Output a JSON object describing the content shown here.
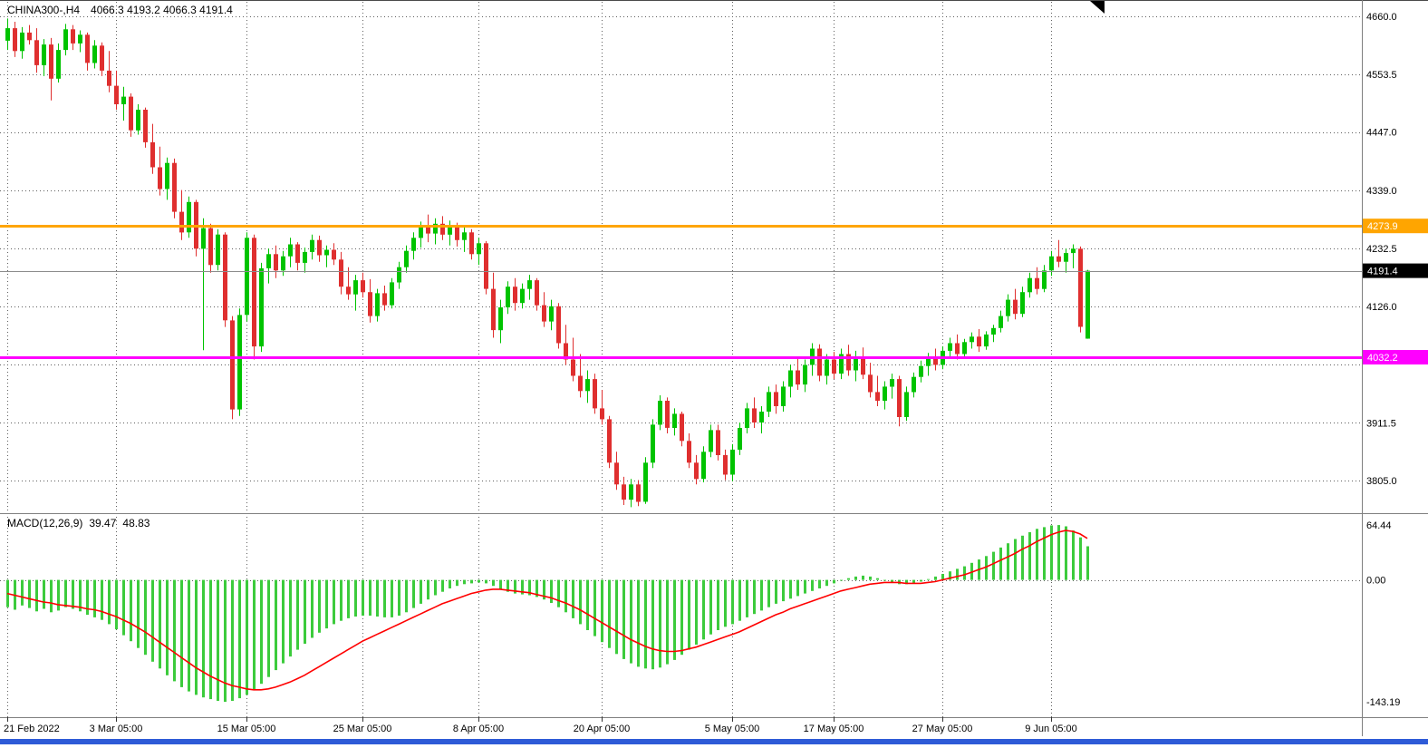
{
  "header": {
    "symbol_period": "CHINA300-,H4",
    "ohlc": "4066.3 4193.2 4066.3 4191.4"
  },
  "macd_label": {
    "name": "MACD(12,26,9)",
    "main": "39.47",
    "signal": "48.83"
  },
  "colors": {
    "bull": "#00C300",
    "bear": "#DF2F2F",
    "histogram": "#3CCB3C",
    "signal_line": "#FF0000",
    "grid": "#5F5F5F",
    "divider": "#808080",
    "resistance": "#FFA500",
    "support": "#FF00FF",
    "current_price_line": "#8C8C8C",
    "current_price_badge": "#000000",
    "bottom_bar": "#2E5BD7",
    "text": "#000000",
    "badge_text": "#FFFFFF"
  },
  "chart_data": [
    {
      "type": "candlestick",
      "title": "CHINA300-,H4",
      "timeframe": "H4",
      "y_axis": {
        "min": 3745,
        "max": 4690,
        "ticks": [
          {
            "value": 4660.0,
            "label": "4660.0"
          },
          {
            "value": 4553.5,
            "label": "4553.5"
          },
          {
            "value": 4447.0,
            "label": "4447.0"
          },
          {
            "value": 4339.0,
            "label": "4339.0"
          },
          {
            "value": 4232.5,
            "label": "4232.5"
          },
          {
            "value": 4126.0,
            "label": "4126.0"
          },
          {
            "value": 4019.5,
            "label": ""
          },
          {
            "value": 3911.5,
            "label": "3911.5"
          },
          {
            "value": 3805.0,
            "label": "3805.0"
          }
        ]
      },
      "x_ticks": [
        {
          "index": 0,
          "label": "21 Feb 2022"
        },
        {
          "index": 15,
          "label": "3 Mar 05:00"
        },
        {
          "index": 33,
          "label": "15 Mar 05:00"
        },
        {
          "index": 49,
          "label": "25 Mar 05:00"
        },
        {
          "index": 65,
          "label": "8 Apr 05:00"
        },
        {
          "index": 82,
          "label": "20 Apr 05:00"
        },
        {
          "index": 100,
          "label": "5 May 05:00"
        },
        {
          "index": 114,
          "label": "17 May 05:00"
        },
        {
          "index": 129,
          "label": "27 May 05:00"
        },
        {
          "index": 144,
          "label": "9 Jun 05:00"
        }
      ],
      "hlines": [
        {
          "value": 4273.9,
          "label": "4273.9",
          "color": "#FFA500",
          "width": 3,
          "role": "resistance-hline"
        },
        {
          "value": 4032.2,
          "label": "4032.2",
          "color": "#FF00FF",
          "width": 3,
          "role": "support-hline"
        },
        {
          "value": 4191.4,
          "label": "4191.4",
          "color": "#8C8C8C",
          "badge": "#000000",
          "width": 1,
          "role": "current-price-line"
        }
      ],
      "candles_ohlc": [
        [
          4615,
          4656,
          4598,
          4638
        ],
        [
          4638,
          4650,
          4585,
          4596
        ],
        [
          4596,
          4640,
          4582,
          4630
        ],
        [
          4630,
          4644,
          4608,
          4616
        ],
        [
          4616,
          4638,
          4556,
          4570
        ],
        [
          4570,
          4618,
          4550,
          4608
        ],
        [
          4608,
          4620,
          4505,
          4545
        ],
        [
          4545,
          4610,
          4538,
          4598
        ],
        [
          4598,
          4646,
          4588,
          4636
        ],
        [
          4636,
          4644,
          4598,
          4610
        ],
        [
          4610,
          4634,
          4594,
          4626
        ],
        [
          4626,
          4630,
          4560,
          4574
        ],
        [
          4574,
          4616,
          4564,
          4606
        ],
        [
          4606,
          4612,
          4550,
          4560
        ],
        [
          4560,
          4596,
          4520,
          4532
        ],
        [
          4532,
          4560,
          4488,
          4498
        ],
        [
          4498,
          4530,
          4468,
          4512
        ],
        [
          4512,
          4518,
          4438,
          4450
        ],
        [
          4450,
          4498,
          4442,
          4488
        ],
        [
          4488,
          4492,
          4418,
          4428
        ],
        [
          4428,
          4462,
          4370,
          4382
        ],
        [
          4382,
          4420,
          4330,
          4342
        ],
        [
          4342,
          4400,
          4322,
          4390
        ],
        [
          4390,
          4398,
          4288,
          4300
        ],
        [
          4300,
          4340,
          4248,
          4262
        ],
        [
          4262,
          4328,
          4252,
          4318
        ],
        [
          4318,
          4322,
          4218,
          4232
        ],
        [
          4232,
          4288,
          4045,
          4270
        ],
        [
          4270,
          4278,
          4188,
          4202
        ],
        [
          4202,
          4268,
          4192,
          4258
        ],
        [
          4258,
          4262,
          4088,
          4100
        ],
        [
          4100,
          4108,
          3918,
          3936
        ],
        [
          3936,
          4122,
          3924,
          4110
        ],
        [
          4110,
          4262,
          4098,
          4252
        ],
        [
          4252,
          4258,
          4028,
          4052
        ],
        [
          4052,
          4206,
          4042,
          4196
        ],
        [
          4196,
          4232,
          4168,
          4222
        ],
        [
          4222,
          4238,
          4178,
          4192
        ],
        [
          4192,
          4228,
          4182,
          4218
        ],
        [
          4218,
          4252,
          4198,
          4240
        ],
        [
          4240,
          4244,
          4192,
          4206
        ],
        [
          4206,
          4234,
          4188,
          4226
        ],
        [
          4226,
          4258,
          4212,
          4248
        ],
        [
          4248,
          4256,
          4208,
          4220
        ],
        [
          4220,
          4238,
          4198,
          4230
        ],
        [
          4230,
          4242,
          4202,
          4212
        ],
        [
          4212,
          4226,
          4148,
          4162
        ],
        [
          4162,
          4198,
          4138,
          4148
        ],
        [
          4148,
          4184,
          4118,
          4174
        ],
        [
          4174,
          4188,
          4142,
          4152
        ],
        [
          4152,
          4176,
          4096,
          4108
        ],
        [
          4108,
          4158,
          4098,
          4150
        ],
        [
          4150,
          4164,
          4118,
          4128
        ],
        [
          4128,
          4178,
          4122,
          4170
        ],
        [
          4170,
          4208,
          4158,
          4198
        ],
        [
          4198,
          4238,
          4188,
          4228
        ],
        [
          4228,
          4262,
          4212,
          4252
        ],
        [
          4252,
          4282,
          4234,
          4272
        ],
        [
          4272,
          4295,
          4244,
          4260
        ],
        [
          4260,
          4288,
          4240,
          4278
        ],
        [
          4278,
          4292,
          4248,
          4258
        ],
        [
          4258,
          4284,
          4238,
          4272
        ],
        [
          4272,
          4280,
          4236,
          4248
        ],
        [
          4248,
          4272,
          4226,
          4262
        ],
        [
          4262,
          4268,
          4212,
          4222
        ],
        [
          4222,
          4252,
          4202,
          4242
        ],
        [
          4242,
          4246,
          4148,
          4158
        ],
        [
          4158,
          4188,
          4068,
          4082
        ],
        [
          4082,
          4138,
          4058,
          4124
        ],
        [
          4124,
          4172,
          4112,
          4162
        ],
        [
          4162,
          4178,
          4118,
          4132
        ],
        [
          4132,
          4168,
          4122,
          4158
        ],
        [
          4158,
          4184,
          4138,
          4174
        ],
        [
          4174,
          4178,
          4118,
          4128
        ],
        [
          4128,
          4152,
          4088,
          4098
        ],
        [
          4098,
          4138,
          4082,
          4126
        ],
        [
          4126,
          4132,
          4048,
          4058
        ],
        [
          4058,
          4092,
          4018,
          4028
        ],
        [
          4028,
          4068,
          3988,
          3998
        ],
        [
          3998,
          4038,
          3958,
          3970
        ],
        [
          3970,
          4008,
          3948,
          3992
        ],
        [
          3992,
          4002,
          3928,
          3938
        ],
        [
          3938,
          3972,
          3908,
          3918
        ],
        [
          3918,
          3924,
          3828,
          3838
        ],
        [
          3838,
          3858,
          3788,
          3798
        ],
        [
          3798,
          3812,
          3760,
          3770
        ],
        [
          3770,
          3808,
          3756,
          3798
        ],
        [
          3798,
          3806,
          3758,
          3766
        ],
        [
          3766,
          3848,
          3762,
          3838
        ],
        [
          3838,
          3918,
          3828,
          3908
        ],
        [
          3908,
          3962,
          3898,
          3952
        ],
        [
          3952,
          3958,
          3892,
          3902
        ],
        [
          3902,
          3938,
          3888,
          3928
        ],
        [
          3928,
          3932,
          3868,
          3878
        ],
        [
          3878,
          3892,
          3828,
          3838
        ],
        [
          3838,
          3852,
          3798,
          3808
        ],
        [
          3808,
          3868,
          3802,
          3858
        ],
        [
          3858,
          3908,
          3848,
          3898
        ],
        [
          3898,
          3908,
          3842,
          3852
        ],
        [
          3852,
          3862,
          3806,
          3816
        ],
        [
          3816,
          3872,
          3804,
          3862
        ],
        [
          3862,
          3912,
          3852,
          3902
        ],
        [
          3902,
          3948,
          3892,
          3938
        ],
        [
          3938,
          3958,
          3902,
          3912
        ],
        [
          3912,
          3942,
          3892,
          3932
        ],
        [
          3932,
          3978,
          3922,
          3968
        ],
        [
          3968,
          3982,
          3928,
          3942
        ],
        [
          3942,
          3988,
          3932,
          3978
        ],
        [
          3978,
          4018,
          3958,
          4008
        ],
        [
          4008,
          4032,
          3972,
          3982
        ],
        [
          3982,
          4028,
          3968,
          4018
        ],
        [
          4018,
          4058,
          3998,
          4048
        ],
        [
          4048,
          4056,
          3988,
          3998
        ],
        [
          3998,
          4038,
          3982,
          4028
        ],
        [
          4028,
          4042,
          3992,
          4002
        ],
        [
          4002,
          4048,
          3992,
          4038
        ],
        [
          4038,
          4055,
          3998,
          4008
        ],
        [
          4008,
          4044,
          3988,
          4032
        ],
        [
          4032,
          4050,
          3992,
          4000
        ],
        [
          4000,
          4022,
          3958,
          3968
        ],
        [
          3968,
          3998,
          3942,
          3952
        ],
        [
          3952,
          3988,
          3936,
          3978
        ],
        [
          3978,
          4002,
          3956,
          3992
        ],
        [
          3992,
          3998,
          3905,
          3922
        ],
        [
          3922,
          3978,
          3915,
          3968
        ],
        [
          3968,
          4004,
          3958,
          3996
        ],
        [
          3996,
          4026,
          3986,
          4016
        ],
        [
          4016,
          4040,
          3998,
          4032
        ],
        [
          4032,
          4048,
          4008,
          4018
        ],
        [
          4018,
          4052,
          4010,
          4044
        ],
        [
          4044,
          4068,
          4032,
          4058
        ],
        [
          4058,
          4074,
          4028,
          4038
        ],
        [
          4038,
          4066,
          4030,
          4060
        ],
        [
          4060,
          4078,
          4048,
          4070
        ],
        [
          4070,
          4084,
          4042,
          4052
        ],
        [
          4052,
          4080,
          4046,
          4074
        ],
        [
          4074,
          4092,
          4060,
          4086
        ],
        [
          4086,
          4118,
          4078,
          4108
        ],
        [
          4108,
          4148,
          4098,
          4138
        ],
        [
          4138,
          4158,
          4102,
          4112
        ],
        [
          4112,
          4162,
          4106,
          4152
        ],
        [
          4152,
          4188,
          4142,
          4178
        ],
        [
          4178,
          4198,
          4148,
          4158
        ],
        [
          4158,
          4202,
          4152,
          4192
        ],
        [
          4192,
          4228,
          4182,
          4218
        ],
        [
          4218,
          4248,
          4198,
          4208
        ],
        [
          4208,
          4232,
          4188,
          4224
        ],
        [
          4224,
          4240,
          4196,
          4232
        ],
        [
          4232,
          4236,
          4078,
          4088
        ],
        [
          4066.3,
          4193.2,
          4066.3,
          4191.4
        ]
      ]
    },
    {
      "type": "bar",
      "title": "MACD(12,26,9)",
      "current_main": 39.47,
      "current_signal": 48.83,
      "y_ticks": [
        {
          "value": 64.44,
          "label": "64.44"
        },
        {
          "value": 0,
          "label": "0.00"
        },
        {
          "value": -143.19,
          "label": "-143.19"
        }
      ],
      "histogram": [
        -32,
        -35,
        -30,
        -33,
        -37,
        -34,
        -38,
        -36,
        -32,
        -34,
        -37,
        -41,
        -44,
        -47,
        -52,
        -58,
        -65,
        -72,
        -80,
        -88,
        -96,
        -104,
        -112,
        -119,
        -126,
        -131,
        -135,
        -138,
        -140,
        -142,
        -143.19,
        -142,
        -139,
        -135,
        -129,
        -122,
        -114,
        -106,
        -98,
        -90,
        -82,
        -75,
        -68,
        -62,
        -57,
        -52,
        -48,
        -45,
        -43,
        -42,
        -42,
        -43,
        -44,
        -44,
        -42,
        -38,
        -33,
        -28,
        -23,
        -18,
        -14,
        -10,
        -7,
        -5,
        -4,
        -3,
        -4,
        -7,
        -11,
        -14,
        -16,
        -17,
        -18,
        -20,
        -23,
        -27,
        -32,
        -38,
        -45,
        -52,
        -59,
        -66,
        -73,
        -80,
        -87,
        -93,
        -98,
        -102,
        -104,
        -105,
        -103,
        -99,
        -94,
        -88,
        -82,
        -76,
        -70,
        -64,
        -59,
        -55,
        -52,
        -48,
        -44,
        -40,
        -36,
        -32,
        -28,
        -25,
        -22,
        -19,
        -16,
        -13,
        -10,
        -7,
        -4,
        -1,
        2,
        4,
        5,
        4,
        2,
        -1,
        -3,
        -5,
        -5,
        -4,
        -2,
        1,
        4,
        7,
        10,
        13,
        16,
        20,
        24,
        28,
        33,
        38,
        43,
        48,
        52,
        56,
        60,
        62,
        64,
        64.44,
        63,
        58,
        50,
        39.47
      ],
      "signal": [
        -16,
        -18,
        -20,
        -22,
        -24,
        -26,
        -27,
        -29,
        -30,
        -31,
        -32,
        -34,
        -35,
        -37,
        -40,
        -43,
        -47,
        -51,
        -56,
        -61,
        -67,
        -73,
        -79,
        -85,
        -91,
        -97,
        -103,
        -108,
        -113,
        -117,
        -121,
        -124,
        -126,
        -128,
        -129,
        -129,
        -128,
        -126,
        -123,
        -120,
        -116,
        -112,
        -107,
        -102,
        -97,
        -92,
        -87,
        -82,
        -77,
        -72,
        -68,
        -64,
        -60,
        -56,
        -52,
        -48,
        -44,
        -40,
        -36,
        -32,
        -28,
        -25,
        -22,
        -19,
        -16,
        -14,
        -12,
        -11,
        -11,
        -12,
        -13,
        -14,
        -15,
        -17,
        -19,
        -21,
        -24,
        -27,
        -31,
        -35,
        -40,
        -45,
        -50,
        -55,
        -60,
        -65,
        -70,
        -74,
        -78,
        -81,
        -83,
        -84,
        -84,
        -83,
        -81,
        -79,
        -76,
        -73,
        -70,
        -67,
        -64,
        -61,
        -57,
        -53,
        -49,
        -45,
        -41,
        -38,
        -34,
        -31,
        -28,
        -25,
        -22,
        -19,
        -16,
        -13,
        -11,
        -9,
        -7,
        -5,
        -4,
        -3,
        -3,
        -3,
        -4,
        -4,
        -4,
        -3,
        -2,
        0,
        2,
        4,
        6,
        9,
        12,
        15,
        19,
        23,
        27,
        31,
        36,
        40,
        45,
        49,
        53,
        56,
        58,
        57,
        54,
        48.83
      ]
    }
  ]
}
